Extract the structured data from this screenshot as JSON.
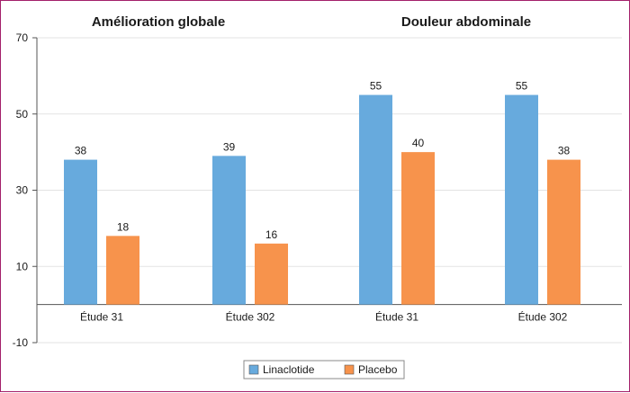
{
  "chart_data": {
    "type": "bar",
    "groups": [
      {
        "title": "Amélioration globale",
        "categories": [
          "Étude 31",
          "Étude 302"
        ]
      },
      {
        "title": "Douleur abdominale",
        "categories": [
          "Étude 31",
          "Étude 302"
        ]
      }
    ],
    "categories": [
      "Étude 31",
      "Étude 302",
      "Étude 31",
      "Étude 302"
    ],
    "series": [
      {
        "name": "Linaclotide",
        "color": "#67aadd",
        "values": [
          38,
          39,
          55,
          55
        ]
      },
      {
        "name": "Placebo",
        "color": "#f7934c",
        "values": [
          18,
          16,
          40,
          38
        ]
      }
    ],
    "y_ticks": [
      "70",
      "50",
      "30",
      "10",
      "-10"
    ],
    "ylim": [
      -10,
      70
    ],
    "grid": true,
    "legend_position": "bottom-center",
    "data_labels": true
  }
}
